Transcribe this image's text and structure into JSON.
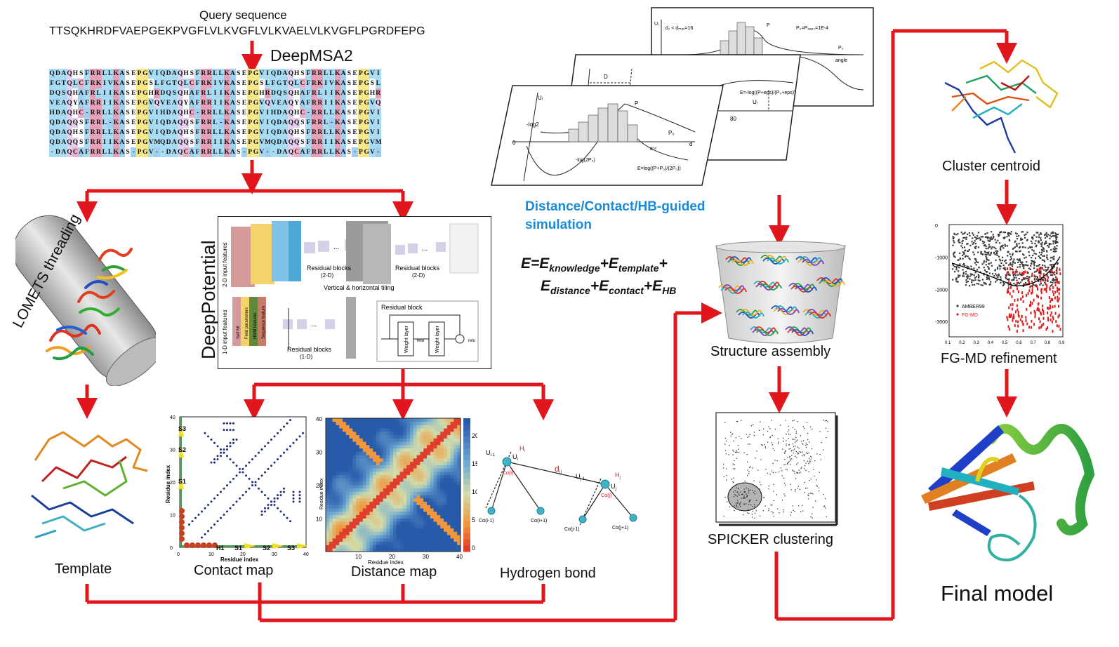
{
  "query": {
    "title": "Query sequence",
    "sequence": "TTSQKHRDFVAEPGEKPVGFLVLKVGFLVLKVAELVLKVGFLPGRDFEPG"
  },
  "msa": {
    "title": "DeepMSA2",
    "rows": [
      "QDAQHSFRRLLKASEPGVIQDAQHSFRRLLKASEPGVIQDAQHSFRRLLKASEPGVI",
      "FGTQLCFRKIVKASEPGSLFGTQLCFRKIVKASEPGSLFGTQLCFRKIVKASEPGSL",
      "DQSQHAFRLIIKASEPGHRDQSQHAFRLIIKASEPGHRDQSQHAFRLIIKASEPGHR",
      "VEAQYAFRRIIKASEPGVQVEAQYAFRRIIKASEPGVQVEAQYAFRRIIKASEPGVQ",
      "HDAQHC-RRLLKASEPGVIHDAQHC-RRLLKASEPGVIHDAQHC-RRLLKASEPGVI",
      "QDAQQSFRRL-KASEPGVIQDAQQSFRRL-KASEPGVIQDAQQSFRRL-KASEPGVI",
      "QDAQHSFRRLLKASEPGVIQDAQHSFRRLLKASEPGVIQDAQHSFRRLLKASEPGVI",
      "QDAQQSFRRIIKASEPGVMQDAQQSFRRIIKASEPGVMQDAQQSFRRIIKASEPGVM",
      "-DAQCAFRRLLKAS-PGV--DAQCAFRRLLKAS-PGV--DAQCAFRRLLKAS-PGV-"
    ]
  },
  "threading": {
    "label": "LOMETS threading"
  },
  "deeppotential": {
    "label": "DeepPotential",
    "input2d": "2-D input features",
    "input1d": "1-D input features",
    "res2d_a": "Residual blocks",
    "res2d_a_sub": "(2-D)",
    "res2d_b": "Residual blocks",
    "res2d_b_sub": "(2-D)",
    "tiling": "Vertical & horizontal tiling",
    "res1d": "Residual blocks",
    "res1d_sub": "(1-D)",
    "resblock": "Residual block",
    "weight1": "Weight layer",
    "weight2": "Weight layer",
    "relu1": "relu",
    "relu2": "relu",
    "feat1": "Self MI",
    "feat2": "Field parameters",
    "feat3": "HMM features",
    "feat4": "Sequence feature"
  },
  "template": {
    "label": "Template"
  },
  "contact_map": {
    "label": "Contact map",
    "xlabel": "Residue index",
    "ylabel": "Residue index",
    "ticks": [
      "0",
      "10",
      "20",
      "30",
      "40"
    ],
    "ss": {
      "s1": "S1",
      "s2": "S2",
      "s3": "S3",
      "h1": "H1"
    }
  },
  "distance_map": {
    "label": "Distance map",
    "xlabel": "Residue index",
    "ylabel": "Residue index",
    "ticks": [
      "10",
      "20",
      "30",
      "40"
    ],
    "cbar_ticks": [
      "20",
      "15",
      "10",
      "5",
      "0"
    ]
  },
  "hbond": {
    "label": "Hydrogen bond",
    "dij": "d",
    "dij_sub": "ij",
    "ca_i": "Cα(i)",
    "ca_i_minus": "Cα(i-1)",
    "ca_i_plus": "Cα(i+1)",
    "ca_j": "Cα(j)",
    "ca_j_minus": "Cα(j-1)",
    "ca_j_plus": "Cα(j+1)",
    "u_i1": "U",
    "u_i1_sub": "i-1",
    "u_i": "U",
    "u_i_sub": "i",
    "h_i": "H",
    "h_i_sub": "i",
    "u_j1": "U",
    "u_j1_sub": "j-1",
    "u_j": "U",
    "u_j_sub": "j",
    "h_j": "H",
    "h_j_sub": "j"
  },
  "potential_planes": {
    "p1": {
      "eq1": "d₁ < dₘₐₓ=16",
      "eq2": "P₀=Pₑₐₚₛ=1E-4",
      "p": "P",
      "p0": "P₀",
      "axis": "angle",
      "y": "Uᵢ"
    },
    "p2": {
      "d": "D",
      "u": "Uᵢ",
      "e": "E=-log((P+eps)/(P₀+eps))",
      "ui": "Uᵢ",
      "v": "80"
    },
    "p3": {
      "log2": "-log2",
      "p": "P",
      "p0": "P₀",
      "neglog": "-log(2P₀)",
      "elog": "E=log((P+P₀)/(2P₀))",
      "o": "0",
      "d": "d",
      "dcut": "dᶜᵘᵗ",
      "u": "Uᵢ"
    }
  },
  "simulation": {
    "line1": "Distance/Contact/HB-guided",
    "line2": "simulation"
  },
  "energy": {
    "e": "E=E",
    "k_sub": "knowledge",
    "plus_t": "+E",
    "t_sub": "template",
    "plus1": "+",
    "d_e": "E",
    "d_sub": "distance",
    "plus_c": "+E",
    "c_sub": "contact",
    "plus_hb": "+E",
    "hb_sub": "HB"
  },
  "assembly": {
    "label": "Structure assembly"
  },
  "spicker": {
    "label": "SPICKER clustering"
  },
  "centroid": {
    "label": "Cluster centroid"
  },
  "fgmd": {
    "label": "FG-MD refinement",
    "legend_a": "AMBER99",
    "legend_b": "FG-MD",
    "yticks": [
      "0",
      "-1000",
      "-2000",
      "-3000"
    ],
    "xticks": [
      "0.1",
      "0.2",
      "0.3",
      "0.4",
      "0.5",
      "0.6",
      "0.7",
      "0.8",
      "0.9"
    ]
  },
  "final": {
    "label": "Final model"
  },
  "colors": {
    "arrow": "#e0161c",
    "accent_blue": "#1a8bd6",
    "contact_dot": "#1f2f7a",
    "red_series": "#e01a1a",
    "grey_series": "#3a3a3a"
  }
}
